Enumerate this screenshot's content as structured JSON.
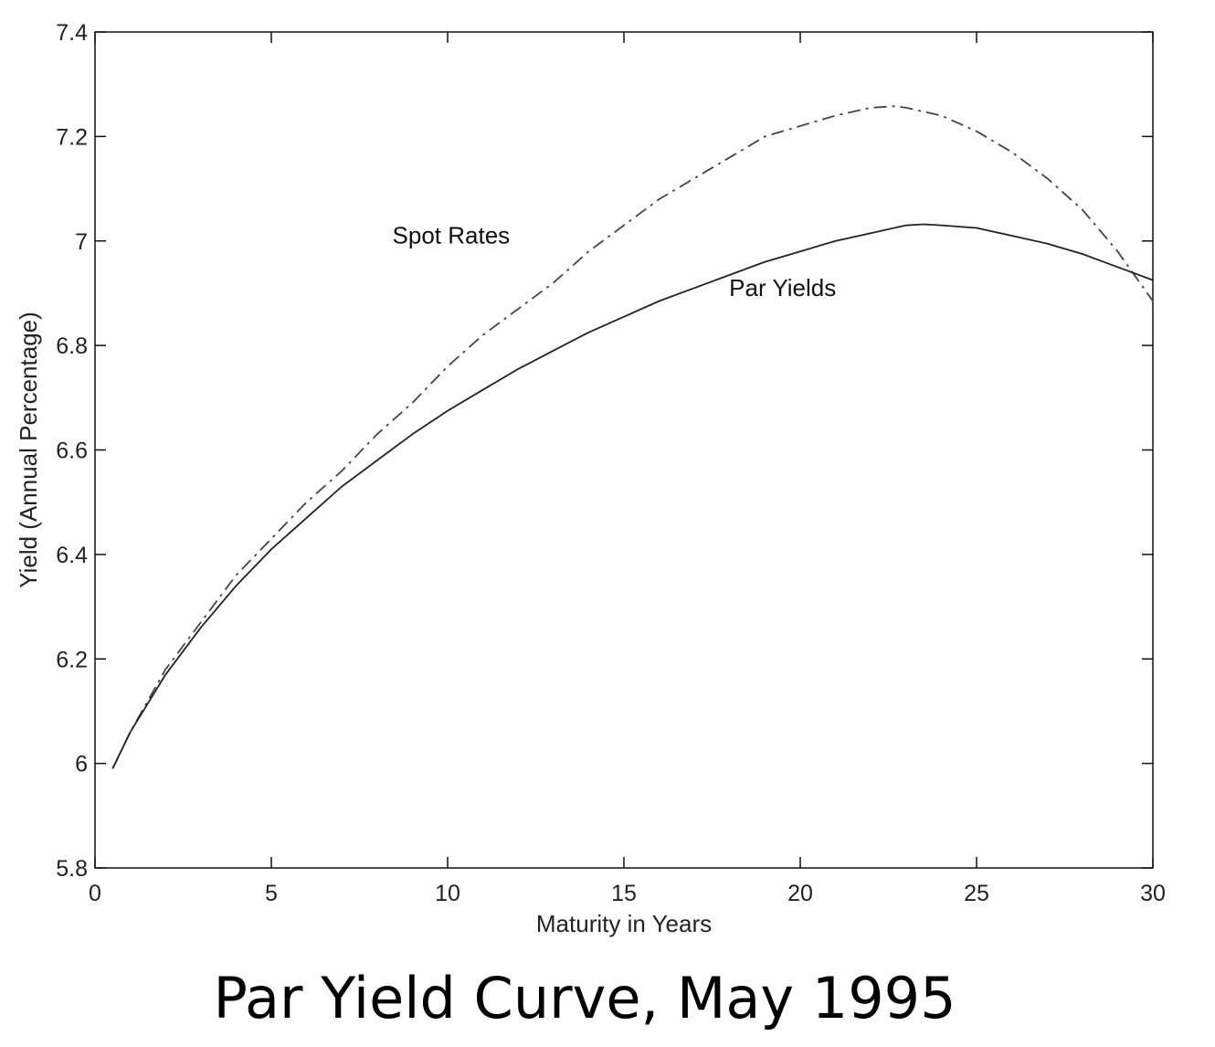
{
  "chart_data": {
    "type": "line",
    "title": "Par Yield Curve, May 1995",
    "xlabel": "Maturity in Years",
    "ylabel": "Yield (Annual Percentage)",
    "xlim": [
      0,
      30
    ],
    "ylim": [
      5.8,
      7.4
    ],
    "xticks": [
      0,
      5,
      10,
      15,
      20,
      25,
      30
    ],
    "xtick_labels": [
      "0",
      "5",
      "10",
      "15",
      "20",
      "25",
      "30"
    ],
    "yticks": [
      5.8,
      6.0,
      6.2,
      6.4,
      6.6,
      6.8,
      7.0,
      7.2,
      7.4
    ],
    "ytick_labels": [
      "5.8",
      "6",
      "6.2",
      "6.4",
      "6.6",
      "6.8",
      "7",
      "7.2",
      "7.4"
    ],
    "grid": false,
    "legend": "none",
    "annotations": [
      {
        "text": "Spot Rates",
        "x": 10.1,
        "y": 6.995
      },
      {
        "text": "Par Yields",
        "x": 19.5,
        "y": 6.895
      }
    ],
    "series": [
      {
        "line_style": "dash-dot",
        "color": "#444444",
        "x": [
          0.5,
          1,
          2,
          3,
          4,
          5,
          6,
          7,
          8,
          9,
          10,
          11,
          12,
          13,
          14,
          15,
          16,
          17,
          18,
          19,
          20,
          21,
          22,
          22.7,
          23,
          24,
          25,
          26,
          27,
          28,
          29,
          30
        ],
        "y": [
          5.99,
          6.06,
          6.18,
          6.27,
          6.36,
          6.43,
          6.5,
          6.56,
          6.63,
          6.69,
          6.76,
          6.82,
          6.87,
          6.92,
          6.98,
          7.03,
          7.08,
          7.12,
          7.16,
          7.2,
          7.22,
          7.24,
          7.255,
          7.258,
          7.255,
          7.24,
          7.21,
          7.17,
          7.12,
          7.06,
          6.98,
          6.885
        ]
      },
      {
        "line_style": "solid",
        "color": "#222222",
        "x": [
          0.5,
          1,
          2,
          3,
          4,
          5,
          6,
          7,
          8,
          9,
          10,
          11,
          12,
          13,
          14,
          15,
          16,
          17,
          18,
          19,
          20,
          21,
          22,
          23,
          23.5,
          24,
          25,
          26,
          27,
          28,
          29,
          30
        ],
        "y": [
          5.99,
          6.06,
          6.17,
          6.26,
          6.34,
          6.41,
          6.47,
          6.53,
          6.58,
          6.63,
          6.675,
          6.715,
          6.755,
          6.79,
          6.825,
          6.855,
          6.885,
          6.91,
          6.935,
          6.96,
          6.98,
          7.0,
          7.015,
          7.03,
          7.032,
          7.03,
          7.025,
          7.01,
          6.995,
          6.975,
          6.95,
          6.925
        ]
      }
    ]
  }
}
